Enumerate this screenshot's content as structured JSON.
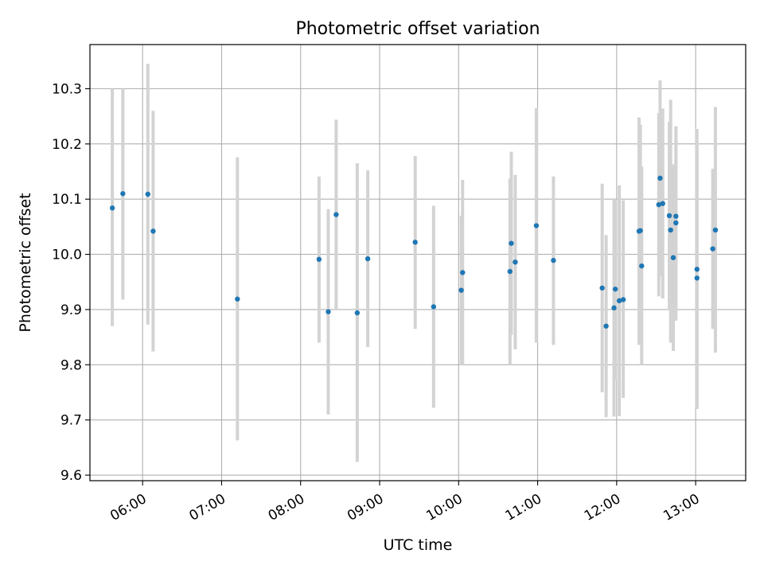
{
  "chart_data": {
    "type": "scatter",
    "title": "Photometric offset variation",
    "xlabel": "UTC time",
    "ylabel": "Photometric offset",
    "x_ticks": [
      "06:00",
      "07:00",
      "08:00",
      "09:00",
      "10:00",
      "11:00",
      "12:00",
      "13:00"
    ],
    "y_ticks": [
      "9.6",
      "9.7",
      "9.8",
      "9.9",
      "10.0",
      "10.1",
      "10.2",
      "10.3"
    ],
    "xlim": [
      "05:20",
      "13:38"
    ],
    "ylim": [
      9.59,
      10.38
    ],
    "grid": true,
    "marker_color": "#1f77b4",
    "errorbar_color": "#d3d3d3",
    "points": [
      {
        "time": "05:37",
        "value": 10.084,
        "low": 9.87,
        "high": 10.3
      },
      {
        "time": "05:45",
        "value": 10.11,
        "low": 9.918,
        "high": 10.3
      },
      {
        "time": "06:04",
        "value": 10.109,
        "low": 9.873,
        "high": 10.345
      },
      {
        "time": "06:08",
        "value": 10.042,
        "low": 9.824,
        "high": 10.26
      },
      {
        "time": "07:12",
        "value": 9.919,
        "low": 9.663,
        "high": 10.176
      },
      {
        "time": "08:14",
        "value": 9.991,
        "low": 9.84,
        "high": 10.141
      },
      {
        "time": "08:21",
        "value": 9.896,
        "low": 9.71,
        "high": 10.082
      },
      {
        "time": "08:27",
        "value": 10.072,
        "low": 9.9,
        "high": 10.244
      },
      {
        "time": "08:43",
        "value": 9.894,
        "low": 9.624,
        "high": 10.165
      },
      {
        "time": "08:51",
        "value": 9.992,
        "low": 9.832,
        "high": 10.152
      },
      {
        "time": "09:27",
        "value": 10.022,
        "low": 9.865,
        "high": 10.178
      },
      {
        "time": "09:41",
        "value": 9.905,
        "low": 9.722,
        "high": 10.088
      },
      {
        "time": "10:02",
        "value": 9.935,
        "low": 9.8,
        "high": 10.07
      },
      {
        "time": "10:03",
        "value": 9.967,
        "low": 9.8,
        "high": 10.135
      },
      {
        "time": "10:39",
        "value": 9.969,
        "low": 9.8,
        "high": 10.137
      },
      {
        "time": "10:40",
        "value": 10.02,
        "low": 9.854,
        "high": 10.186
      },
      {
        "time": "10:43",
        "value": 9.986,
        "low": 9.828,
        "high": 10.144
      },
      {
        "time": "10:59",
        "value": 10.052,
        "low": 9.84,
        "high": 10.265
      },
      {
        "time": "11:12",
        "value": 9.989,
        "low": 9.836,
        "high": 10.141
      },
      {
        "time": "11:49",
        "value": 9.939,
        "low": 9.75,
        "high": 10.128
      },
      {
        "time": "11:52",
        "value": 9.87,
        "low": 9.705,
        "high": 10.035
      },
      {
        "time": "11:58",
        "value": 9.903,
        "low": 9.706,
        "high": 10.1
      },
      {
        "time": "11:59",
        "value": 9.937,
        "low": 9.772,
        "high": 10.1
      },
      {
        "time": "12:02",
        "value": 9.916,
        "low": 9.707,
        "high": 10.125
      },
      {
        "time": "12:05",
        "value": 9.918,
        "low": 9.74,
        "high": 10.098
      },
      {
        "time": "12:17",
        "value": 10.042,
        "low": 9.836,
        "high": 10.248
      },
      {
        "time": "12:18",
        "value": 10.043,
        "low": 9.85,
        "high": 10.235
      },
      {
        "time": "12:19",
        "value": 9.979,
        "low": 9.8,
        "high": 10.159
      },
      {
        "time": "12:32",
        "value": 10.09,
        "low": 9.924,
        "high": 10.256
      },
      {
        "time": "12:33",
        "value": 10.138,
        "low": 9.96,
        "high": 10.315
      },
      {
        "time": "12:35",
        "value": 10.092,
        "low": 9.92,
        "high": 10.264
      },
      {
        "time": "12:40",
        "value": 10.07,
        "low": 9.9,
        "high": 10.24
      },
      {
        "time": "12:41",
        "value": 10.044,
        "low": 9.84,
        "high": 10.28
      },
      {
        "time": "12:43",
        "value": 9.994,
        "low": 9.825,
        "high": 10.163
      },
      {
        "time": "12:45",
        "value": 10.069,
        "low": 9.89,
        "high": 10.23
      },
      {
        "time": "12:45",
        "value": 10.057,
        "low": 9.88,
        "high": 10.232
      },
      {
        "time": "13:01",
        "value": 9.973,
        "low": 9.72,
        "high": 10.227
      },
      {
        "time": "13:01",
        "value": 9.957,
        "low": 9.721,
        "high": 10.193
      },
      {
        "time": "13:13",
        "value": 10.01,
        "low": 9.865,
        "high": 10.155
      },
      {
        "time": "13:15",
        "value": 10.044,
        "low": 9.822,
        "high": 10.267
      }
    ]
  }
}
